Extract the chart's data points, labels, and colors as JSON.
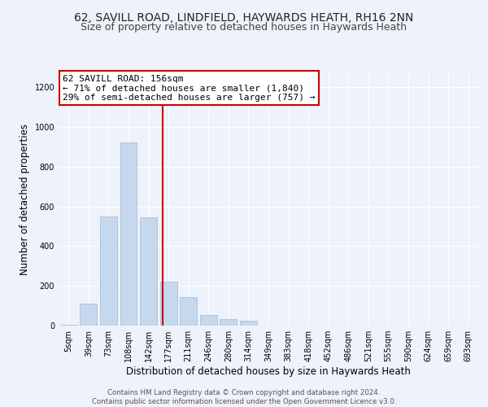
{
  "title": "62, SAVILL ROAD, LINDFIELD, HAYWARDS HEATH, RH16 2NN",
  "subtitle": "Size of property relative to detached houses in Haywards Heath",
  "xlabel": "Distribution of detached houses by size in Haywards Heath",
  "ylabel": "Number of detached properties",
  "footer_line1": "Contains HM Land Registry data © Crown copyright and database right 2024.",
  "footer_line2": "Contains public sector information licensed under the Open Government Licence v3.0.",
  "bar_labels": [
    "5sqm",
    "39sqm",
    "73sqm",
    "108sqm",
    "142sqm",
    "177sqm",
    "211sqm",
    "246sqm",
    "280sqm",
    "314sqm",
    "349sqm",
    "383sqm",
    "418sqm",
    "452sqm",
    "486sqm",
    "521sqm",
    "555sqm",
    "590sqm",
    "624sqm",
    "659sqm",
    "693sqm"
  ],
  "bar_values": [
    5,
    110,
    550,
    920,
    545,
    220,
    145,
    52,
    32,
    25,
    0,
    0,
    0,
    0,
    0,
    0,
    0,
    0,
    0,
    0,
    0
  ],
  "bar_color": "#c5d8ed",
  "bar_edge_color": "#a0b8d0",
  "vline_x": 4.72,
  "vline_color": "#cc0000",
  "annotation_text": "62 SAVILL ROAD: 156sqm\n← 71% of detached houses are smaller (1,840)\n29% of semi-detached houses are larger (757) →",
  "annotation_box_color": "#ffffff",
  "annotation_box_edge_color": "#cc0000",
  "ylim": [
    0,
    1270
  ],
  "yticks": [
    0,
    200,
    400,
    600,
    800,
    1000,
    1200
  ],
  "bg_color": "#eef2fa",
  "grid_color": "#ffffff",
  "title_fontsize": 10,
  "subtitle_fontsize": 9,
  "axis_fontsize": 8.5,
  "tick_fontsize": 7,
  "annotation_fontsize": 8
}
